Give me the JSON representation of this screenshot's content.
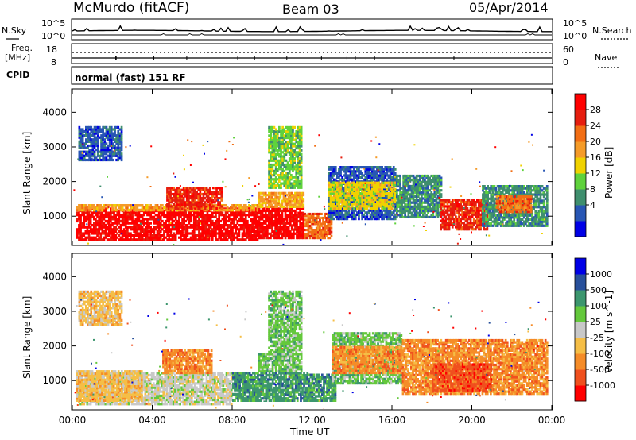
{
  "header": {
    "station": "McMurdo (fitACF)",
    "beam": "Beam 03",
    "date": "05/Apr/2014"
  },
  "status_panel": {
    "nsky_label": "N.Sky",
    "nsearch_label": "N.Search",
    "noise_ticks": [
      "10^5",
      "10^0"
    ],
    "freq_label_1": "Freq.",
    "freq_label_2": "[MHz]",
    "freq_ticks": [
      "18",
      "8"
    ],
    "nave_ticks": [
      "60",
      "0"
    ],
    "nave_label": "Nave",
    "cpid_label": "CPID",
    "cpid_text": "normal (fast) 151 RF"
  },
  "colors": {
    "power": [
      "#0000e6",
      "#2856b4",
      "#3f8f6e",
      "#5fd23c",
      "#f0d200",
      "#f59b28",
      "#f26e14",
      "#e61e0f",
      "#ff0000"
    ],
    "velocity": [
      "#ff0000",
      "#f0501e",
      "#f58c28",
      "#f5be46",
      "#c8c8c8",
      "#64c83c",
      "#3c966e",
      "#28509b",
      "#0000e6"
    ]
  },
  "chart_data": [
    {
      "type": "heatmap",
      "name": "power",
      "ylabel": "Slant Range [km]",
      "xlabel": "",
      "yticks": [
        "1000",
        "2000",
        "3000",
        "4000"
      ],
      "xticks": [
        "00:00",
        "04:00",
        "08:00",
        "12:00",
        "16:00",
        "20:00",
        "00:00"
      ],
      "ylim": [
        180,
        4650
      ],
      "xlim_hours": [
        0,
        24
      ],
      "colorbar": {
        "label": "Power [dB]",
        "ticks": [
          "28",
          "24",
          "20",
          "16",
          "12",
          "8",
          "4"
        ],
        "range": [
          0,
          30
        ]
      },
      "regions": [
        {
          "t": [
            0.2,
            9.3
          ],
          "r": [
            300,
            1250
          ],
          "level": 8
        },
        {
          "t": [
            0.2,
            9.3
          ],
          "r": [
            1150,
            1350
          ],
          "level": 5
        },
        {
          "t": [
            4.7,
            7.5
          ],
          "r": [
            1200,
            1850
          ],
          "level": 7
        },
        {
          "t": [
            9.3,
            11.6
          ],
          "r": [
            350,
            1250
          ],
          "level": 8
        },
        {
          "t": [
            9.3,
            11.6
          ],
          "r": [
            1250,
            1700
          ],
          "level": 5
        },
        {
          "t": [
            11.6,
            13.0
          ],
          "r": [
            350,
            1100
          ],
          "level": 6
        },
        {
          "t": [
            12.8,
            16.2
          ],
          "r": [
            900,
            2450
          ],
          "level": 1
        },
        {
          "t": [
            12.8,
            16.2
          ],
          "r": [
            1200,
            2000
          ],
          "level": 4
        },
        {
          "t": [
            16.2,
            18.5
          ],
          "r": [
            950,
            2200
          ],
          "level": 2
        },
        {
          "t": [
            18.4,
            20.8
          ],
          "r": [
            600,
            1500
          ],
          "level": 7
        },
        {
          "t": [
            20.5,
            23.8
          ],
          "r": [
            700,
            1900
          ],
          "level": 2
        },
        {
          "t": [
            21.2,
            23.0
          ],
          "r": [
            1100,
            1600
          ],
          "level": 6
        },
        {
          "t": [
            0.3,
            2.5
          ],
          "r": [
            2600,
            3600
          ],
          "level": 1
        },
        {
          "t": [
            9.8,
            11.5
          ],
          "r": [
            1800,
            3600
          ],
          "level": 3
        }
      ]
    },
    {
      "type": "heatmap",
      "name": "velocity",
      "ylabel": "Slant Range [km]",
      "xlabel": "Time UT",
      "yticks": [
        "1000",
        "2000",
        "3000",
        "4000"
      ],
      "xticks": [
        "00:00",
        "04:00",
        "08:00",
        "12:00",
        "16:00",
        "20:00",
        "00:00"
      ],
      "ylim": [
        180,
        4650
      ],
      "xlim_hours": [
        0,
        24
      ],
      "colorbar": {
        "label": "Velocity [m s^-1]",
        "ticks": [
          "1000",
          "500",
          "100",
          "25",
          "-25",
          "-100",
          "-500",
          "-1000"
        ],
        "range": [
          -1500,
          1500
        ]
      },
      "regions": [
        {
          "t": [
            0.2,
            8.0
          ],
          "r": [
            300,
            1250
          ],
          "level": 4
        },
        {
          "t": [
            0.2,
            3.5
          ],
          "r": [
            400,
            1300
          ],
          "level": 3
        },
        {
          "t": [
            4.5,
            7.0
          ],
          "r": [
            1200,
            1900
          ],
          "level": 2
        },
        {
          "t": [
            8.0,
            11.8
          ],
          "r": [
            400,
            1250
          ],
          "level": 6
        },
        {
          "t": [
            9.3,
            11.5
          ],
          "r": [
            1250,
            1800
          ],
          "level": 5
        },
        {
          "t": [
            11.8,
            13.2
          ],
          "r": [
            400,
            1200
          ],
          "level": 6
        },
        {
          "t": [
            13.0,
            16.5
          ],
          "r": [
            900,
            2400
          ],
          "level": 5
        },
        {
          "t": [
            13.0,
            16.5
          ],
          "r": [
            1200,
            2000
          ],
          "level": 2
        },
        {
          "t": [
            16.5,
            23.8
          ],
          "r": [
            600,
            2200
          ],
          "level": 2
        },
        {
          "t": [
            18.0,
            21.0
          ],
          "r": [
            700,
            1500
          ],
          "level": 1
        },
        {
          "t": [
            0.3,
            2.5
          ],
          "r": [
            2600,
            3600
          ],
          "level": 3
        },
        {
          "t": [
            9.8,
            11.5
          ],
          "r": [
            1800,
            3600
          ],
          "level": 5
        }
      ]
    }
  ]
}
